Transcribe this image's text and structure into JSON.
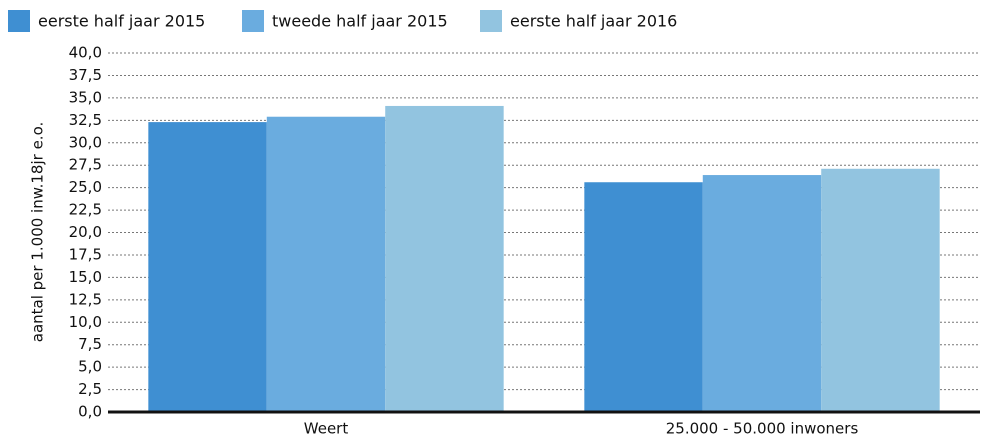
{
  "chart_data": {
    "type": "bar",
    "y_label": "aantal per 1.000 inw.18jr e.o.",
    "categories": [
      "Weert",
      "25.000 - 50.000 inwoners"
    ],
    "series": [
      {
        "name": "eerste half jaar 2015",
        "color": "#3f8fd2",
        "values": [
          32.3,
          25.6
        ]
      },
      {
        "name": "tweede half jaar 2015",
        "color": "#6aacdf",
        "values": [
          32.9,
          26.4
        ]
      },
      {
        "name": "eerste half jaar 2016",
        "color": "#92c4e0",
        "values": [
          34.1,
          27.1
        ]
      }
    ],
    "ylim": [
      0,
      40
    ],
    "yticks": [
      {
        "value": 0,
        "label": "0,0"
      },
      {
        "value": 2.5,
        "label": "2,5"
      },
      {
        "value": 5,
        "label": "5,0"
      },
      {
        "value": 7.5,
        "label": "7,5"
      },
      {
        "value": 10,
        "label": "10,0"
      },
      {
        "value": 12.5,
        "label": "12,5"
      },
      {
        "value": 15,
        "label": "15,0"
      },
      {
        "value": 17.5,
        "label": "17,5"
      },
      {
        "value": 20,
        "label": "20,0"
      },
      {
        "value": 22.5,
        "label": "22,5"
      },
      {
        "value": 25,
        "label": "25,0"
      },
      {
        "value": 27.5,
        "label": "27,5"
      },
      {
        "value": 30,
        "label": "30,0"
      },
      {
        "value": 32.5,
        "label": "32,5"
      },
      {
        "value": 35,
        "label": "35,0"
      },
      {
        "value": 37.5,
        "label": "37,5"
      },
      {
        "value": 40,
        "label": "40,0"
      }
    ],
    "grid": true,
    "legend": "top"
  }
}
